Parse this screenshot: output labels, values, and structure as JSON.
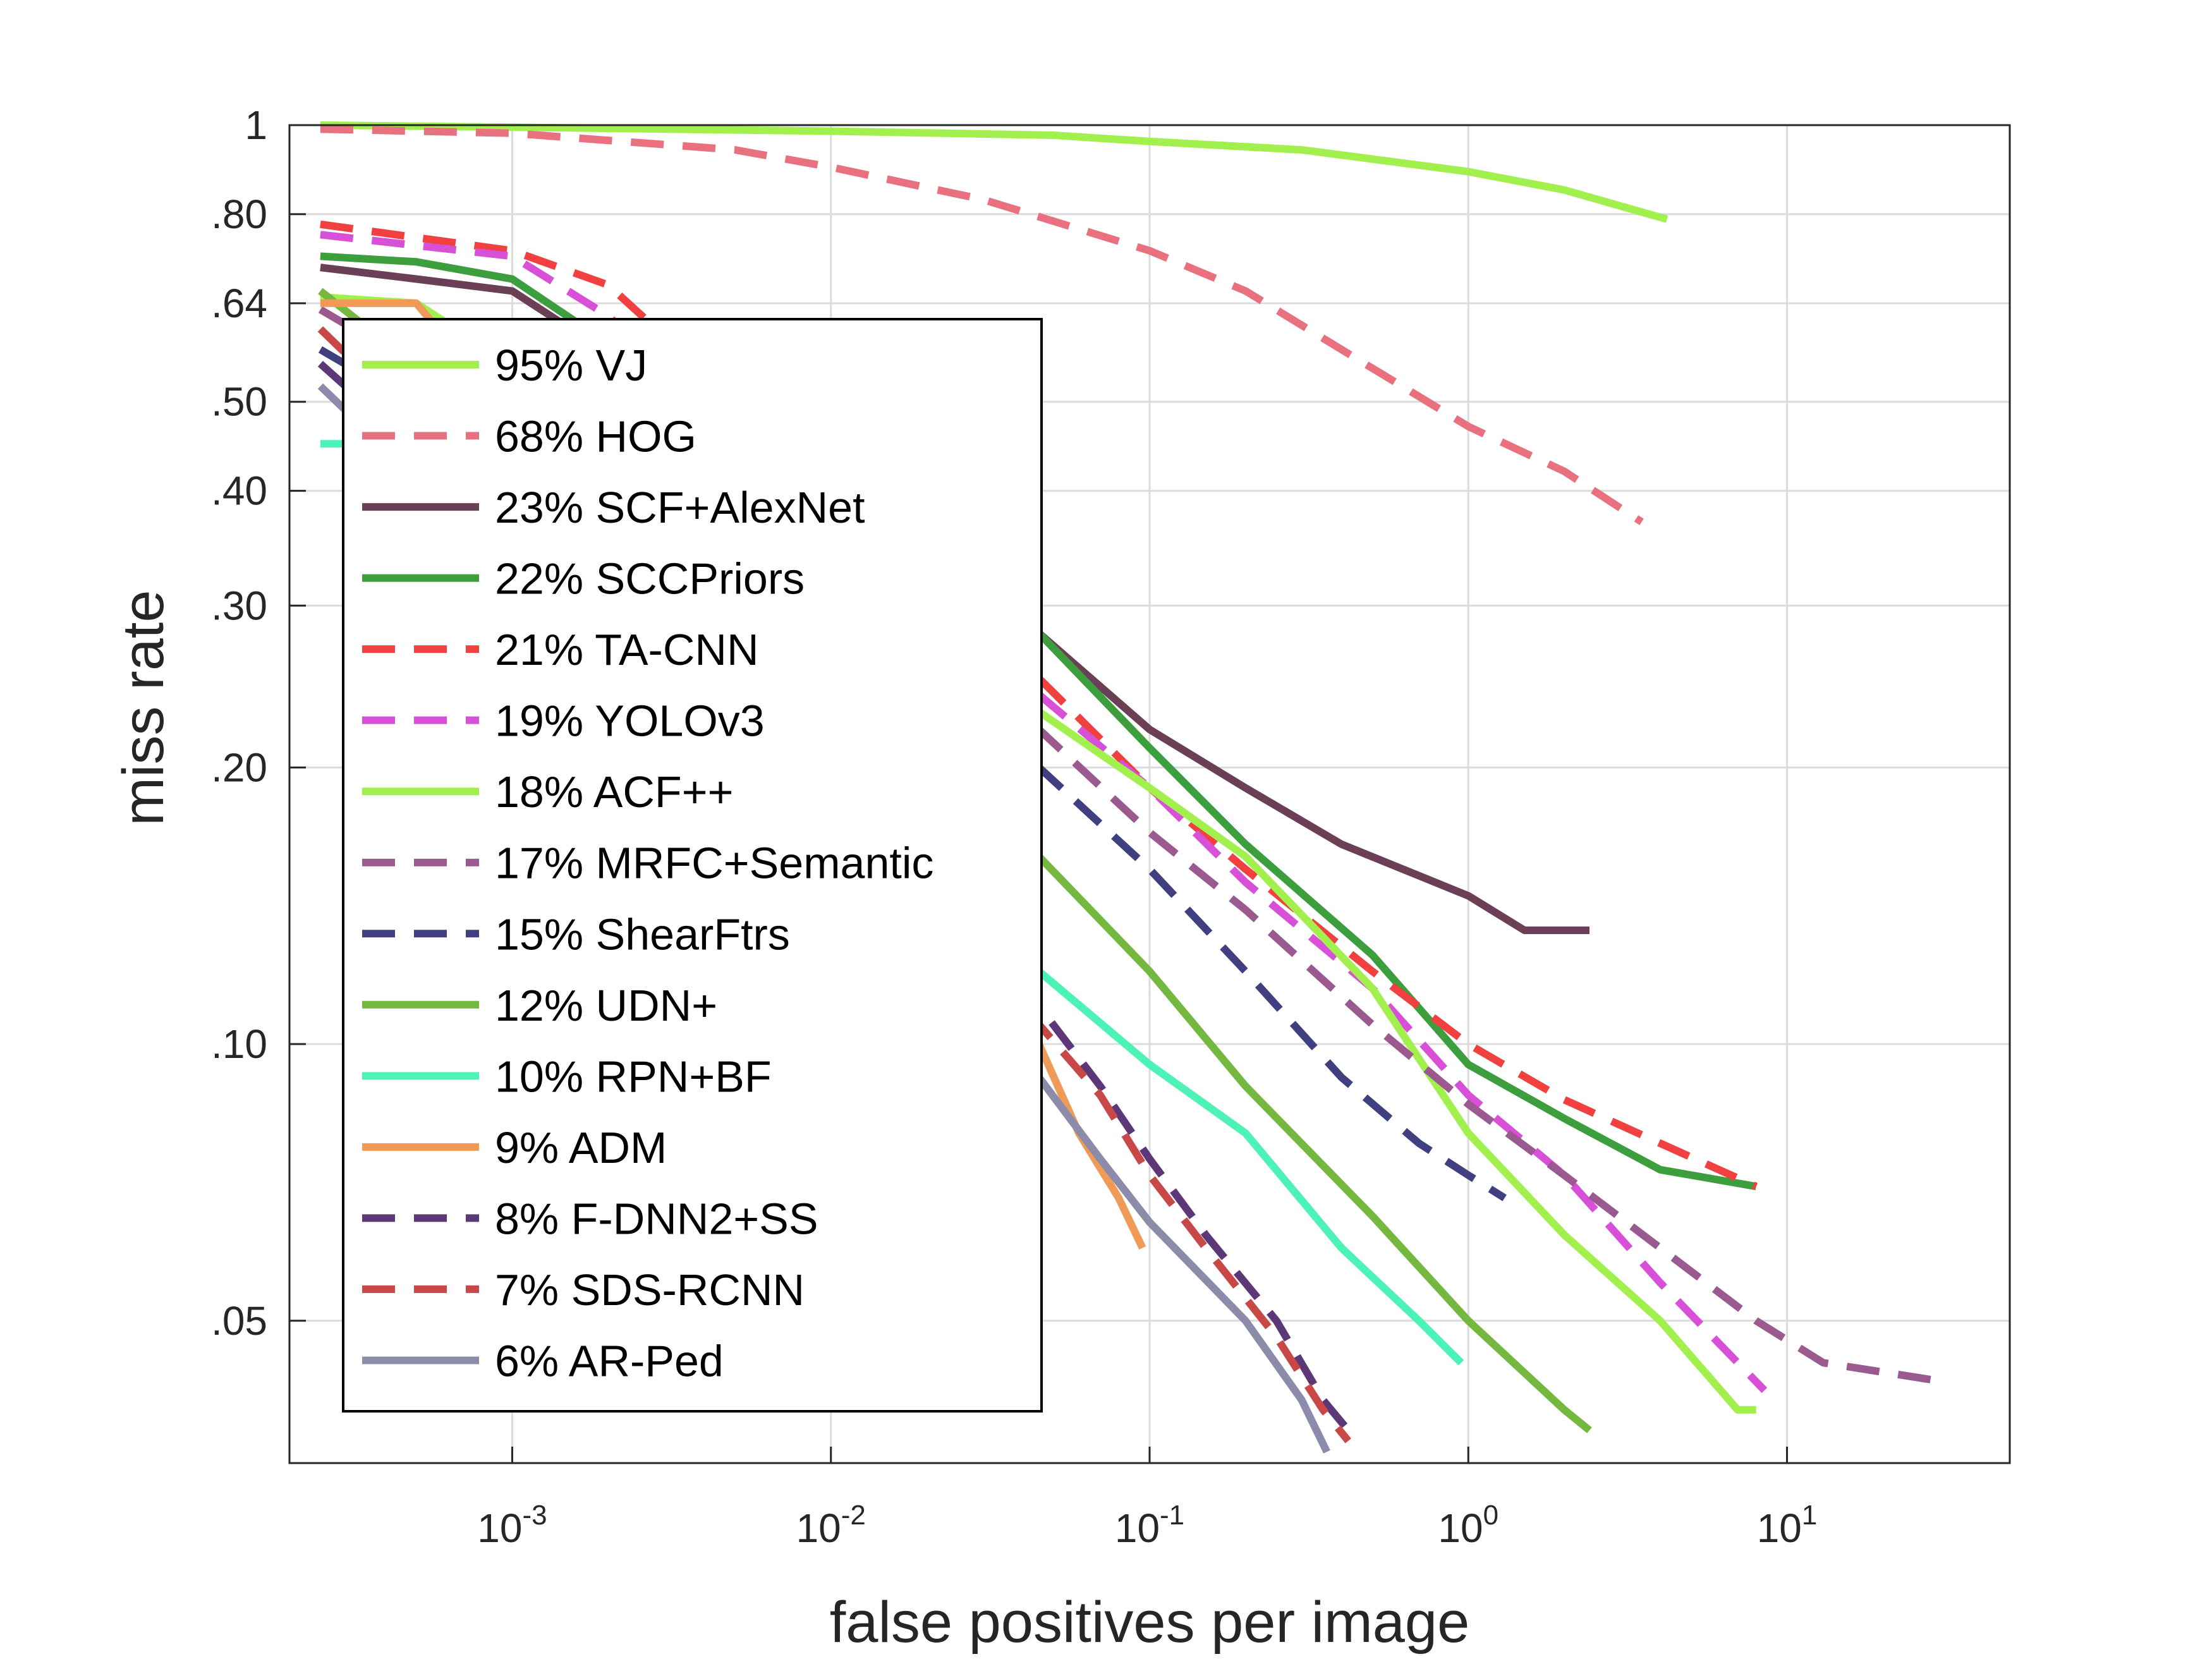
{
  "chart_data": {
    "type": "line",
    "title": "",
    "xlabel": "false positives per image",
    "ylabel": "miss rate",
    "x_scale": "log",
    "y_scale": "log",
    "xlim": [
      0.0002,
      50
    ],
    "ylim": [
      0.035,
      1
    ],
    "grid": true,
    "legend_position": "left-middle",
    "x_ticks": [
      {
        "base": "10",
        "exp": "-3",
        "value": 0.001
      },
      {
        "base": "10",
        "exp": "-2",
        "value": 0.01
      },
      {
        "base": "10",
        "exp": "-1",
        "value": 0.1
      },
      {
        "base": "10",
        "exp": "0",
        "value": 1
      },
      {
        "base": "10",
        "exp": "1",
        "value": 10
      }
    ],
    "y_ticks": [
      {
        "label": "1",
        "value": 1
      },
      {
        "label": ".80",
        "value": 0.8
      },
      {
        "label": ".64",
        "value": 0.64
      },
      {
        "label": ".50",
        "value": 0.5
      },
      {
        "label": ".40",
        "value": 0.4
      },
      {
        "label": ".30",
        "value": 0.3
      },
      {
        "label": ".20",
        "value": 0.2
      },
      {
        "label": ".10",
        "value": 0.1
      },
      {
        "label": ".05",
        "value": 0.05
      }
    ],
    "series": [
      {
        "name": "95% VJ",
        "color": "#a2f04d",
        "dashed": false,
        "points": [
          [
            0.00025,
            1.0
          ],
          [
            0.001,
            0.995
          ],
          [
            0.01,
            0.985
          ],
          [
            0.05,
            0.975
          ],
          [
            0.1,
            0.96
          ],
          [
            0.3,
            0.94
          ],
          [
            1,
            0.89
          ],
          [
            2,
            0.85
          ],
          [
            4.2,
            0.79
          ]
        ]
      },
      {
        "name": "68% HOG",
        "color": "#e8707f",
        "dashed": true,
        "points": [
          [
            0.00025,
            0.99
          ],
          [
            0.001,
            0.98
          ],
          [
            0.005,
            0.94
          ],
          [
            0.01,
            0.9
          ],
          [
            0.03,
            0.83
          ],
          [
            0.1,
            0.73
          ],
          [
            0.2,
            0.66
          ],
          [
            0.4,
            0.57
          ],
          [
            1,
            0.47
          ],
          [
            2,
            0.42
          ],
          [
            3.5,
            0.37
          ]
        ]
      },
      {
        "name": "23% SCF+AlexNet",
        "color": "#6b3f56",
        "dashed": false,
        "points": [
          [
            0.00025,
            0.7
          ],
          [
            0.0005,
            0.68
          ],
          [
            0.001,
            0.66
          ],
          [
            0.045,
            0.28
          ],
          [
            0.1,
            0.22
          ],
          [
            0.2,
            0.19
          ],
          [
            0.4,
            0.165
          ],
          [
            1,
            0.145
          ],
          [
            1.5,
            0.133
          ],
          [
            2.4,
            0.133
          ]
        ]
      },
      {
        "name": "22% SCCPriors",
        "color": "#3d9e3d",
        "dashed": false,
        "points": [
          [
            0.00025,
            0.72
          ],
          [
            0.0005,
            0.71
          ],
          [
            0.001,
            0.68
          ],
          [
            0.045,
            0.28
          ],
          [
            0.1,
            0.21
          ],
          [
            0.2,
            0.165
          ],
          [
            0.5,
            0.125
          ],
          [
            1,
            0.095
          ],
          [
            2,
            0.083
          ],
          [
            4,
            0.073
          ],
          [
            8,
            0.07
          ]
        ]
      },
      {
        "name": "21% TA-CNN",
        "color": "#f04040",
        "dashed": true,
        "points": [
          [
            0.00025,
            0.78
          ],
          [
            0.001,
            0.73
          ],
          [
            0.002,
            0.67
          ],
          [
            0.045,
            0.25
          ],
          [
            0.1,
            0.19
          ],
          [
            0.2,
            0.155
          ],
          [
            0.5,
            0.12
          ],
          [
            1,
            0.1
          ],
          [
            2,
            0.087
          ],
          [
            4,
            0.078
          ],
          [
            8,
            0.07
          ]
        ]
      },
      {
        "name": "19% YOLOv3",
        "color": "#d84fd8",
        "dashed": true,
        "points": [
          [
            0.00025,
            0.76
          ],
          [
            0.001,
            0.72
          ],
          [
            0.002,
            0.62
          ],
          [
            0.045,
            0.24
          ],
          [
            0.1,
            0.19
          ],
          [
            0.2,
            0.15
          ],
          [
            0.5,
            0.115
          ],
          [
            1,
            0.088
          ],
          [
            2,
            0.072
          ],
          [
            4,
            0.055
          ],
          [
            8.5,
            0.042
          ]
        ]
      },
      {
        "name": "18% ACF++",
        "color": "#a2f04d",
        "dashed": false,
        "points": [
          [
            0.00025,
            0.65
          ],
          [
            0.0005,
            0.64
          ],
          [
            0.045,
            0.23
          ],
          [
            0.1,
            0.19
          ],
          [
            0.2,
            0.16
          ],
          [
            0.5,
            0.115
          ],
          [
            1,
            0.08
          ],
          [
            2,
            0.062
          ],
          [
            4,
            0.05
          ],
          [
            7,
            0.04
          ],
          [
            8,
            0.04
          ]
        ]
      },
      {
        "name": "17% MRFC+Semantic",
        "color": "#9b5a8f",
        "dashed": true,
        "points": [
          [
            0.00025,
            0.63
          ],
          [
            0.045,
            0.22
          ],
          [
            0.1,
            0.17
          ],
          [
            0.2,
            0.14
          ],
          [
            0.5,
            0.105
          ],
          [
            1,
            0.086
          ],
          [
            2,
            0.072
          ],
          [
            4,
            0.06
          ],
          [
            8,
            0.05
          ],
          [
            13,
            0.045
          ],
          [
            30,
            0.043
          ]
        ]
      },
      {
        "name": "15% ShearFtrs",
        "color": "#404080",
        "dashed": true,
        "points": [
          [
            0.00025,
            0.57
          ],
          [
            0.045,
            0.2
          ],
          [
            0.1,
            0.155
          ],
          [
            0.2,
            0.12
          ],
          [
            0.4,
            0.092
          ],
          [
            0.7,
            0.078
          ],
          [
            1,
            0.072
          ],
          [
            1.3,
            0.068
          ]
        ]
      },
      {
        "name": "12% UDN+",
        "color": "#74b83f",
        "dashed": false,
        "points": [
          [
            0.00025,
            0.66
          ],
          [
            0.045,
            0.16
          ],
          [
            0.1,
            0.12
          ],
          [
            0.2,
            0.09
          ],
          [
            0.5,
            0.065
          ],
          [
            1,
            0.05
          ],
          [
            2,
            0.04
          ],
          [
            2.4,
            0.038
          ]
        ]
      },
      {
        "name": "10% RPN+BF",
        "color": "#4cf2b6",
        "dashed": false,
        "points": [
          [
            0.00025,
            0.45
          ],
          [
            0.0003,
            0.45
          ],
          [
            0.045,
            0.12
          ],
          [
            0.1,
            0.095
          ],
          [
            0.2,
            0.08
          ],
          [
            0.4,
            0.06
          ],
          [
            0.7,
            0.05
          ],
          [
            0.95,
            0.045
          ]
        ]
      },
      {
        "name": "9% ADM",
        "color": "#f09a58",
        "dashed": false,
        "points": [
          [
            0.00025,
            0.64
          ],
          [
            0.0005,
            0.64
          ],
          [
            0.045,
            0.1
          ],
          [
            0.06,
            0.08
          ],
          [
            0.08,
            0.068
          ],
          [
            0.095,
            0.06
          ]
        ]
      },
      {
        "name": "8% F-DNN2+SS",
        "color": "#5c3878",
        "dashed": true,
        "points": [
          [
            0.00025,
            0.55
          ],
          [
            0.045,
            0.11
          ],
          [
            0.07,
            0.09
          ],
          [
            0.1,
            0.075
          ],
          [
            0.15,
            0.062
          ],
          [
            0.25,
            0.05
          ],
          [
            0.35,
            0.041
          ],
          [
            0.42,
            0.038
          ]
        ]
      },
      {
        "name": "7% SDS-RCNN",
        "color": "#c84848",
        "dashed": true,
        "points": [
          [
            0.00025,
            0.6
          ],
          [
            0.045,
            0.105
          ],
          [
            0.07,
            0.088
          ],
          [
            0.1,
            0.072
          ],
          [
            0.15,
            0.06
          ],
          [
            0.25,
            0.048
          ],
          [
            0.35,
            0.04
          ],
          [
            0.42,
            0.037
          ]
        ]
      },
      {
        "name": "6% AR-Ped",
        "color": "#8c8caa",
        "dashed": false,
        "points": [
          [
            0.00025,
            0.52
          ],
          [
            0.045,
            0.092
          ],
          [
            0.07,
            0.075
          ],
          [
            0.1,
            0.064
          ],
          [
            0.2,
            0.05
          ],
          [
            0.3,
            0.041
          ],
          [
            0.36,
            0.036
          ]
        ]
      }
    ]
  }
}
